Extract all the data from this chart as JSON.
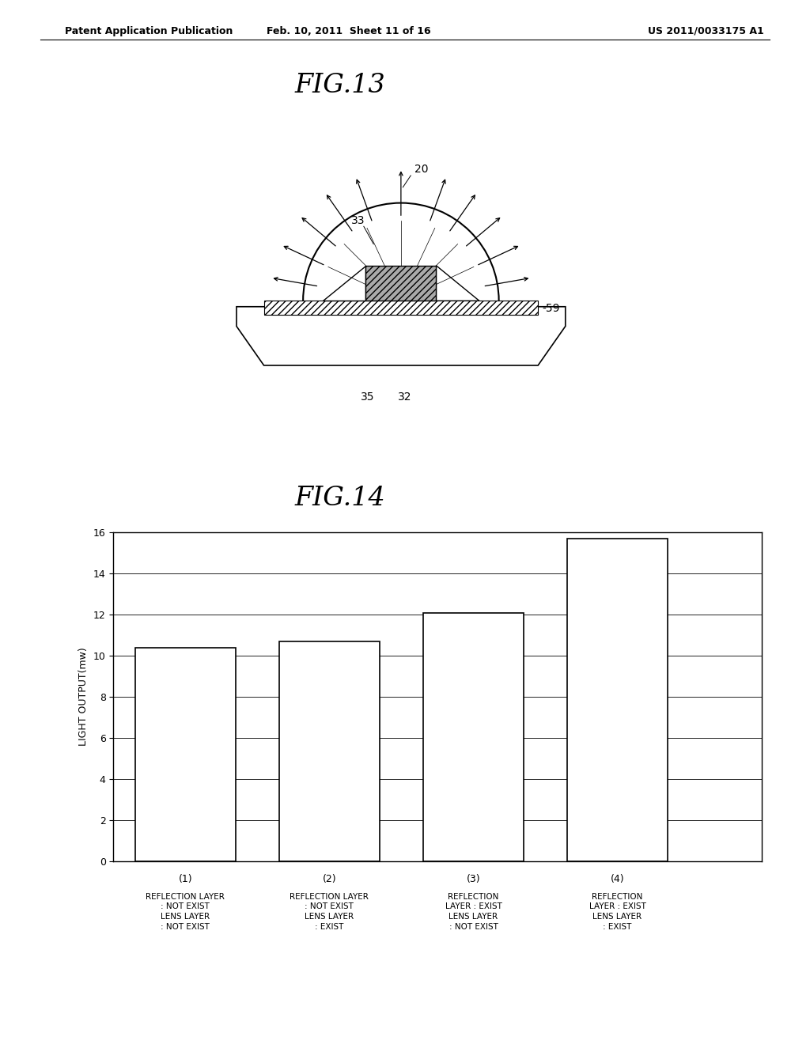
{
  "bg_color": "#ffffff",
  "header_left": "Patent Application Publication",
  "header_mid": "Feb. 10, 2011  Sheet 11 of 16",
  "header_right": "US 2011/0033175 A1",
  "fig13_title": "FIG.13",
  "fig14_title": "FIG.14",
  "bar_values": [
    10.4,
    10.7,
    12.1,
    15.7
  ],
  "bar_labels": [
    "(1)",
    "(2)",
    "(3)",
    "(4)"
  ],
  "bar_sublabels": [
    "REFLECTION LAYER\n: NOT EXIST\nLENS LAYER\n: NOT EXIST",
    "REFLECTION LAYER\n: NOT EXIST\nLENS LAYER\n: EXIST",
    "REFLECTION\nLAYER : EXIST\nLENS LAYER\n: NOT EXIST",
    "REFLECTION\nLAYER : EXIST\nLENS LAYER\n: EXIST"
  ],
  "bar_color": "#ffffff",
  "bar_edge_color": "#000000",
  "ylabel": "LIGHT OUTPUT(mw)",
  "ylim": [
    0,
    16
  ],
  "yticks": [
    0,
    2,
    4,
    6,
    8,
    10,
    12,
    14,
    16
  ],
  "diagram_label_20": "20",
  "diagram_label_33": "33",
  "diagram_label_59": "-59",
  "diagram_label_35": "35",
  "diagram_label_32": "32"
}
